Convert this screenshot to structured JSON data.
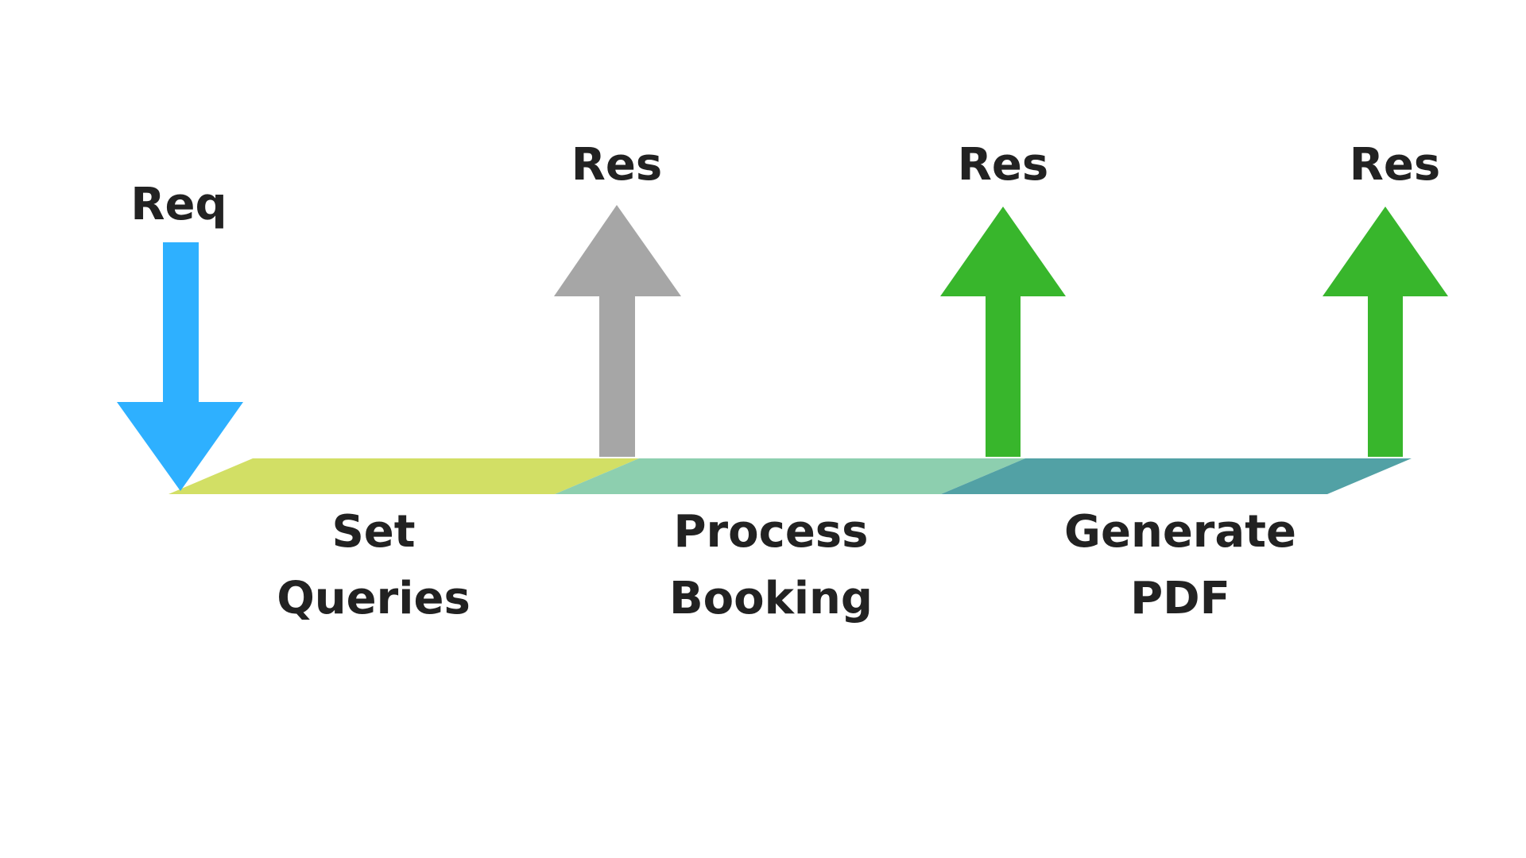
{
  "colors": {
    "request_arrow": "#2EB0FF",
    "pending_response_arrow": "#A6A6A6",
    "response_arrow": "#38B62C",
    "stage_1": "#D2DF65",
    "stage_2": "#8DCFAF",
    "stage_3": "#52A1A5",
    "text": "#222222"
  },
  "arrows": [
    {
      "label": "Req",
      "direction": "down",
      "color": "request_arrow"
    },
    {
      "label": "Res",
      "direction": "up",
      "color": "pending_response_arrow"
    },
    {
      "label": "Res",
      "direction": "up",
      "color": "response_arrow"
    },
    {
      "label": "Res",
      "direction": "up",
      "color": "response_arrow"
    }
  ],
  "stages": [
    {
      "lines": [
        "Set",
        "Queries"
      ],
      "color": "stage_1"
    },
    {
      "lines": [
        "Process",
        "Booking"
      ],
      "color": "stage_2"
    },
    {
      "lines": [
        "Generate",
        "PDF"
      ],
      "color": "stage_3"
    }
  ]
}
